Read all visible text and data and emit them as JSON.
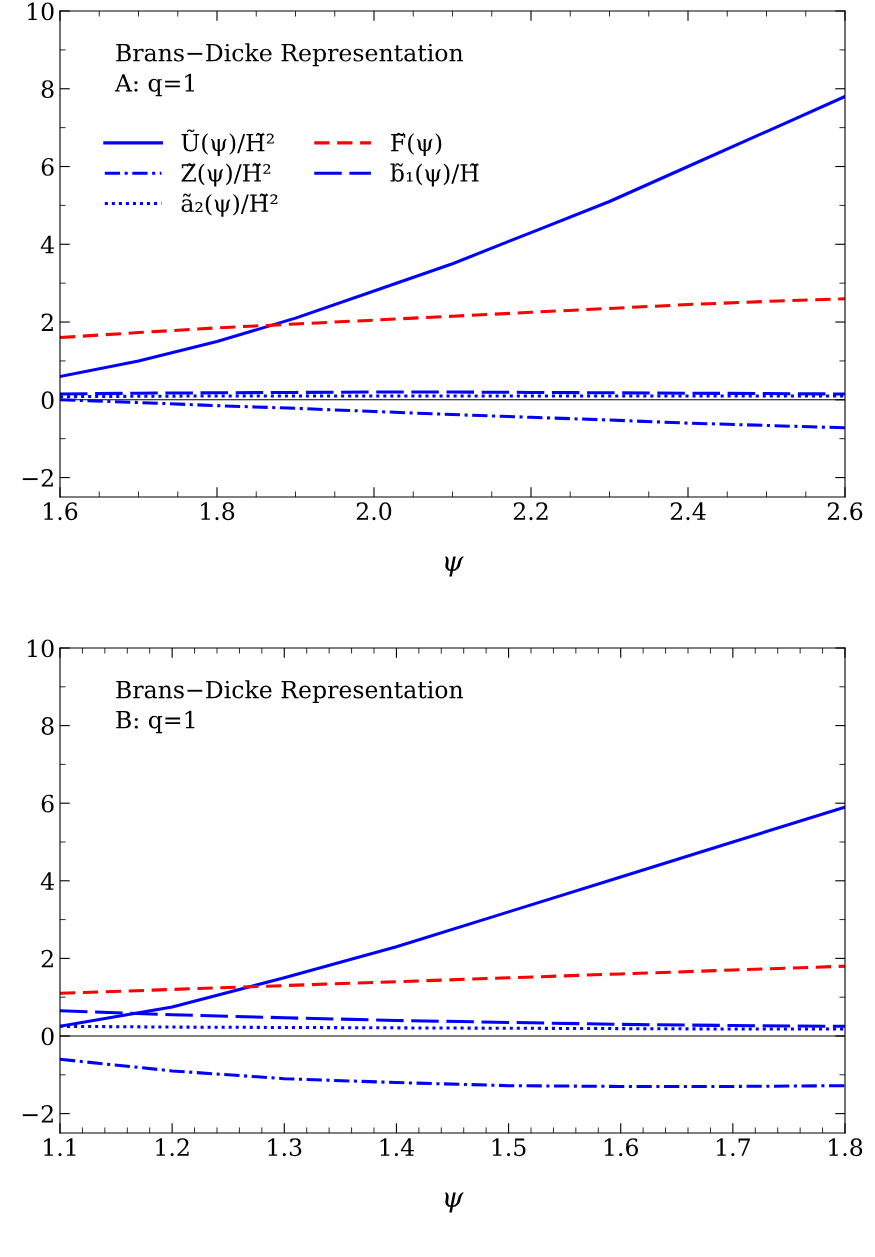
{
  "chart_data": [
    {
      "type": "line",
      "xlabel": "ψ",
      "xlim": [
        1.6,
        2.6
      ],
      "xticks": [
        {
          "value": 1.6,
          "label": "1.6"
        },
        {
          "value": 1.8,
          "label": "1.8"
        },
        {
          "value": 2.0,
          "label": "2.0"
        },
        {
          "value": 2.2,
          "label": "2.2"
        },
        {
          "value": 2.4,
          "label": "2.4"
        },
        {
          "value": 2.6,
          "label": "2.6"
        }
      ],
      "ylim": [
        -2.5,
        10
      ],
      "yticks": [
        {
          "value": -2,
          "label": "−2"
        },
        0,
        2,
        4,
        6,
        8,
        10
      ],
      "grid": false,
      "legend": "top left",
      "annotations": [
        "Brans−Dicke Representation",
        "A: q=1"
      ],
      "ref_lines": [
        {
          "axis": "y",
          "value": 0,
          "color": "#000000",
          "line_style": "solid"
        }
      ],
      "x": [
        1.6,
        1.7,
        1.8,
        1.9,
        2.0,
        2.1,
        2.2,
        2.3,
        2.4,
        2.5,
        2.6
      ],
      "series": [
        {
          "name": "Ũ(ψ)/H̃²",
          "color": "#0000ff",
          "line_style": "solid",
          "values": [
            0.6,
            1.0,
            1.5,
            2.1,
            2.8,
            3.5,
            4.3,
            5.1,
            6.0,
            6.9,
            7.8
          ]
        },
        {
          "name": "Z̃(ψ)/H̃²",
          "color": "#0000ff",
          "line_style": "dashdot",
          "values": [
            0.0,
            -0.07,
            -0.15,
            -0.22,
            -0.3,
            -0.38,
            -0.45,
            -0.52,
            -0.6,
            -0.66,
            -0.72
          ]
        },
        {
          "name": "ã₂(ψ)/H̃²",
          "color": "#0000ff",
          "line_style": "dotted",
          "values": [
            0.08,
            0.09,
            0.1,
            0.1,
            0.1,
            0.1,
            0.1,
            0.1,
            0.1,
            0.1,
            0.1
          ]
        },
        {
          "name": "F̃(ψ)",
          "color": "#ff0000",
          "line_style": "dashed",
          "values": [
            1.6,
            1.73,
            1.85,
            1.95,
            2.05,
            2.15,
            2.25,
            2.35,
            2.45,
            2.53,
            2.6
          ]
        },
        {
          "name": "b̃₁(ψ)/H̃",
          "color": "#0000ff",
          "line_style": "longdash",
          "values": [
            0.15,
            0.17,
            0.18,
            0.19,
            0.2,
            0.2,
            0.19,
            0.18,
            0.17,
            0.16,
            0.15
          ]
        }
      ]
    },
    {
      "type": "line",
      "xlabel": "ψ",
      "xlim": [
        1.1,
        1.8
      ],
      "xticks": [
        1.1,
        1.2,
        1.3,
        1.4,
        1.5,
        1.6,
        1.7,
        1.8
      ],
      "ylim": [
        -2.5,
        10
      ],
      "yticks": [
        {
          "value": -2,
          "label": "−2"
        },
        0,
        2,
        4,
        6,
        8,
        10
      ],
      "grid": false,
      "annotations": [
        "Brans−Dicke Representation",
        "B: q=1"
      ],
      "ref_lines": [
        {
          "axis": "y",
          "value": 0,
          "color": "#000000",
          "line_style": "solid"
        }
      ],
      "x": [
        1.1,
        1.2,
        1.3,
        1.4,
        1.5,
        1.6,
        1.7,
        1.8
      ],
      "series": [
        {
          "color": "#0000ff",
          "line_style": "solid",
          "values": [
            0.25,
            0.75,
            1.5,
            2.3,
            3.2,
            4.1,
            5.0,
            5.9
          ]
        },
        {
          "color": "#ff0000",
          "line_style": "dashed",
          "values": [
            1.1,
            1.2,
            1.3,
            1.4,
            1.5,
            1.6,
            1.7,
            1.8
          ]
        },
        {
          "color": "#0000ff",
          "line_style": "dashdot",
          "values": [
            -0.6,
            -0.9,
            -1.1,
            -1.2,
            -1.28,
            -1.3,
            -1.3,
            -1.28
          ]
        },
        {
          "color": "#0000ff",
          "line_style": "longdash",
          "values": [
            0.65,
            0.55,
            0.47,
            0.4,
            0.35,
            0.3,
            0.27,
            0.25
          ]
        },
        {
          "color": "#0000ff",
          "line_style": "dotted",
          "values": [
            0.25,
            0.23,
            0.22,
            0.21,
            0.2,
            0.19,
            0.18,
            0.18
          ]
        }
      ]
    }
  ]
}
